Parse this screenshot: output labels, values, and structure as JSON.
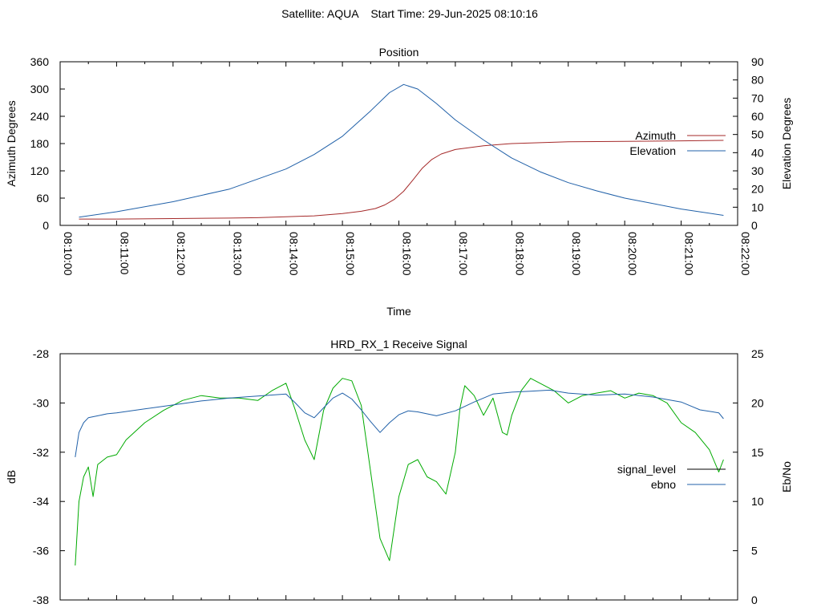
{
  "header": {
    "title": "Satellite: AQUA    Start Time: 29-Jun-2025 08:10:16"
  },
  "chart_data": [
    {
      "type": "line",
      "title": "Position",
      "xlabel": "Time",
      "ylabel": "Azimuth Degrees",
      "y2label": "Elevation Degrees",
      "x_ticks": [
        "08:10:00",
        "08:11:00",
        "08:12:00",
        "08:13:00",
        "08:14:00",
        "08:15:00",
        "08:16:00",
        "08:17:00",
        "08:18:00",
        "08:19:00",
        "08:20:00",
        "08:21:00",
        "08:22:00"
      ],
      "xlim": [
        "08:10:00",
        "08:22:00"
      ],
      "ylim": [
        0,
        360
      ],
      "y_ticks": [
        0,
        60,
        120,
        180,
        240,
        300,
        360
      ],
      "y2lim": [
        0,
        90
      ],
      "y2_ticks": [
        0,
        10,
        20,
        30,
        40,
        50,
        60,
        70,
        80,
        90
      ],
      "grid": false,
      "legend": "right",
      "series": [
        {
          "name": "Azimuth",
          "axis": "y1",
          "color": "#a52a2a",
          "x": [
            "08:10:20",
            "08:11:00",
            "08:12:00",
            "08:13:00",
            "08:13:30",
            "08:14:00",
            "08:14:30",
            "08:15:00",
            "08:15:20",
            "08:15:35",
            "08:15:45",
            "08:15:55",
            "08:16:05",
            "08:16:15",
            "08:16:25",
            "08:16:35",
            "08:16:45",
            "08:17:00",
            "08:17:30",
            "08:18:00",
            "08:18:30",
            "08:19:00",
            "08:20:00",
            "08:21:00",
            "08:21:45"
          ],
          "values": [
            14,
            14,
            15,
            16,
            17,
            19,
            21,
            26,
            31,
            37,
            45,
            57,
            75,
            100,
            126,
            145,
            157,
            167,
            175,
            180,
            182,
            184,
            185,
            186,
            187
          ]
        },
        {
          "name": "Elevation",
          "axis": "y2",
          "color": "#2060a8",
          "x": [
            "08:10:20",
            "08:11:00",
            "08:12:00",
            "08:13:00",
            "08:14:00",
            "08:14:30",
            "08:15:00",
            "08:15:30",
            "08:15:50",
            "08:16:05",
            "08:16:20",
            "08:16:40",
            "08:17:00",
            "08:17:30",
            "08:18:00",
            "08:18:30",
            "08:19:00",
            "08:19:30",
            "08:20:00",
            "08:20:30",
            "08:21:00",
            "08:21:45"
          ],
          "values": [
            4.5,
            7.5,
            13,
            20,
            31,
            39,
            49,
            63,
            73,
            77.5,
            75,
            67,
            58,
            47,
            37,
            29.5,
            23.5,
            19,
            15,
            12,
            9,
            5.5
          ]
        }
      ]
    },
    {
      "type": "line",
      "title": "HRD_RX_1 Receive Signal",
      "xlabel": "",
      "ylabel": "dB",
      "y2label": "Eb/No",
      "xlim": [
        "08:10:00",
        "08:22:00"
      ],
      "ylim": [
        -38,
        -28
      ],
      "y_ticks": [
        -38,
        -36,
        -34,
        -32,
        -30,
        -28
      ],
      "y2lim": [
        0,
        25
      ],
      "y2_ticks": [
        0,
        5,
        10,
        15,
        20,
        25
      ],
      "grid": false,
      "legend": "right",
      "series": [
        {
          "name": "signal_level",
          "axis": "y1",
          "color": "#00aa00",
          "x": [
            "08:10:16",
            "08:10:20",
            "08:10:25",
            "08:10:30",
            "08:10:35",
            "08:10:40",
            "08:10:50",
            "08:11:00",
            "08:11:10",
            "08:11:30",
            "08:11:50",
            "08:12:10",
            "08:12:30",
            "08:12:50",
            "08:13:10",
            "08:13:30",
            "08:13:45",
            "08:14:00",
            "08:14:10",
            "08:14:20",
            "08:14:30",
            "08:14:40",
            "08:14:50",
            "08:15:00",
            "08:15:10",
            "08:15:20",
            "08:15:30",
            "08:15:40",
            "08:15:50",
            "08:16:00",
            "08:16:10",
            "08:16:20",
            "08:16:30",
            "08:16:40",
            "08:16:50",
            "08:17:00",
            "08:17:05",
            "08:17:10",
            "08:17:20",
            "08:17:30",
            "08:17:40",
            "08:17:50",
            "08:17:55",
            "08:18:00",
            "08:18:10",
            "08:18:20",
            "08:18:30",
            "08:18:45",
            "08:19:00",
            "08:19:15",
            "08:19:30",
            "08:19:45",
            "08:20:00",
            "08:20:15",
            "08:20:30",
            "08:20:45",
            "08:21:00",
            "08:21:15",
            "08:21:30",
            "08:21:40",
            "08:21:45"
          ],
          "values": [
            -36.6,
            -34,
            -33,
            -32.6,
            -33.8,
            -32.5,
            -32.2,
            -32.1,
            -31.5,
            -30.8,
            -30.3,
            -29.9,
            -29.7,
            -29.8,
            -29.8,
            -29.9,
            -29.5,
            -29.2,
            -30.3,
            -31.5,
            -32.3,
            -30.3,
            -29.4,
            -29,
            -29.1,
            -30.1,
            -32.8,
            -35.5,
            -36.4,
            -33.8,
            -32.5,
            -32.3,
            -33,
            -33.2,
            -33.7,
            -32,
            -30.2,
            -29.3,
            -29.7,
            -30.5,
            -29.8,
            -31.2,
            -31.3,
            -30.5,
            -29.5,
            -29,
            -29.2,
            -29.5,
            -30,
            -29.7,
            -29.6,
            -29.5,
            -29.8,
            -29.6,
            -29.7,
            -30,
            -30.8,
            -31.2,
            -31.9,
            -32.8,
            -32.3
          ]
        },
        {
          "name": "ebno",
          "axis": "y2",
          "color": "#2060a8",
          "x": [
            "08:10:16",
            "08:10:20",
            "08:10:25",
            "08:10:30",
            "08:10:40",
            "08:10:50",
            "08:11:00",
            "08:11:30",
            "08:12:00",
            "08:12:30",
            "08:13:00",
            "08:13:30",
            "08:14:00",
            "08:14:10",
            "08:14:20",
            "08:14:30",
            "08:14:40",
            "08:14:50",
            "08:15:00",
            "08:15:10",
            "08:15:20",
            "08:15:30",
            "08:15:40",
            "08:15:50",
            "08:16:00",
            "08:16:10",
            "08:16:20",
            "08:16:40",
            "08:17:00",
            "08:17:20",
            "08:17:40",
            "08:18:00",
            "08:18:20",
            "08:18:40",
            "08:19:00",
            "08:19:30",
            "08:20:00",
            "08:20:30",
            "08:21:00",
            "08:21:20",
            "08:21:40",
            "08:21:45"
          ],
          "values": [
            14.5,
            17,
            18,
            18.5,
            18.7,
            18.9,
            19,
            19.4,
            19.8,
            20.2,
            20.5,
            20.7,
            20.9,
            20,
            19,
            18.5,
            19.5,
            20.5,
            21,
            20.4,
            19.3,
            18.1,
            17,
            18,
            18.8,
            19.2,
            19.1,
            18.7,
            19.2,
            20.1,
            20.9,
            21.1,
            21.2,
            21.3,
            21,
            20.8,
            20.9,
            20.6,
            20.1,
            19.3,
            19,
            18.4
          ]
        }
      ]
    }
  ]
}
